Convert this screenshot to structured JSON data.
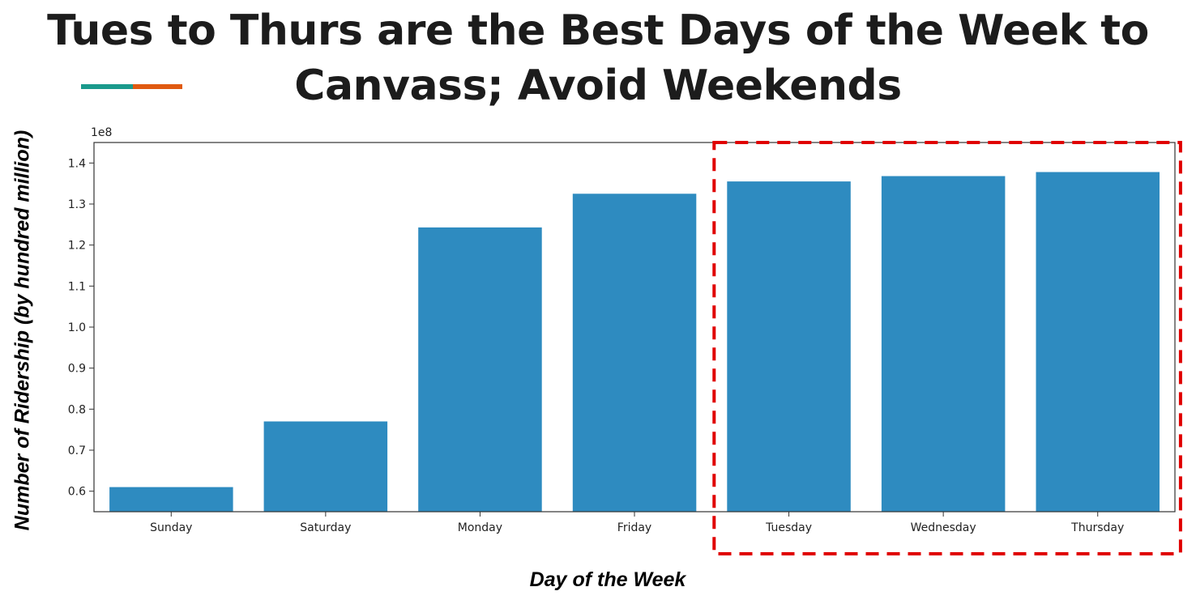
{
  "title": {
    "line1": "Tues to Thurs are the Best Days of the Week to",
    "line2": "Canvass; Avoid Weekends"
  },
  "accent_colors": [
    "#1a9a8c",
    "#e05a10"
  ],
  "chart_data": {
    "type": "bar",
    "categories": [
      "Sunday",
      "Saturday",
      "Monday",
      "Friday",
      "Tuesday",
      "Wednesday",
      "Thursday"
    ],
    "values": [
      0.61,
      0.77,
      1.243,
      1.325,
      1.355,
      1.368,
      1.378
    ],
    "xlabel": "Day of the Week",
    "ylabel": "Number of Ridership (by hundred million)",
    "offset_label": "1e8",
    "ylim": [
      0.55,
      1.45
    ],
    "yticks": [
      0.6,
      0.7,
      0.8,
      0.9,
      1.0,
      1.1,
      1.2,
      1.3,
      1.4
    ],
    "bar_color": "#2e8bc0",
    "highlight": [
      "Tuesday",
      "Wednesday",
      "Thursday"
    ],
    "highlight_color": "#e00000",
    "grid": false
  }
}
